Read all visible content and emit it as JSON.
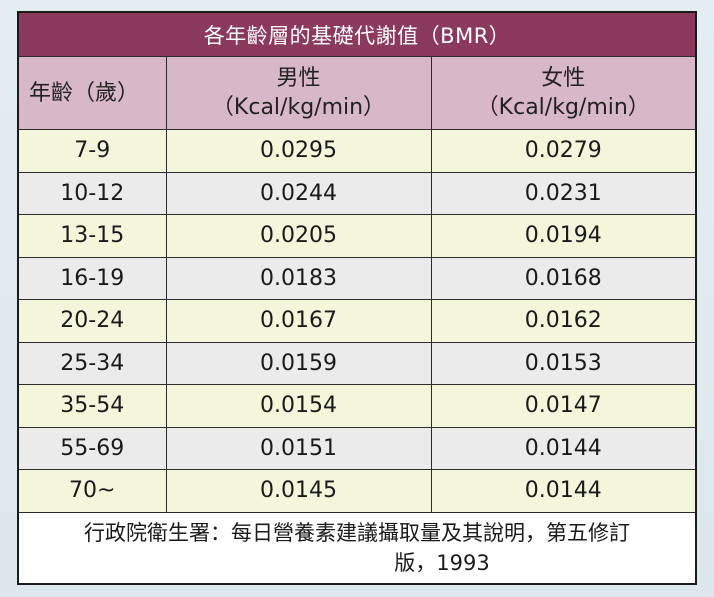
{
  "table": {
    "title": "各年齡層的基礎代謝值（BMR）",
    "headers": {
      "age": "年齡（歲）",
      "male_line1": "男性",
      "male_line2": "（Kcal/kg/min）",
      "female_line1": "女性",
      "female_line2": "（Kcal/kg/min）"
    },
    "rows": [
      {
        "age": "7-9",
        "male": "0.0295",
        "female": "0.0279"
      },
      {
        "age": "10-12",
        "male": "0.0244",
        "female": "0.0231"
      },
      {
        "age": "13-15",
        "male": "0.0205",
        "female": "0.0194"
      },
      {
        "age": "16-19",
        "male": "0.0183",
        "female": "0.0168"
      },
      {
        "age": "20-24",
        "male": "0.0167",
        "female": "0.0162"
      },
      {
        "age": "25-34",
        "male": "0.0159",
        "female": "0.0153"
      },
      {
        "age": "35-54",
        "male": "0.0154",
        "female": "0.0147"
      },
      {
        "age": "55-69",
        "male": "0.0151",
        "female": "0.0144"
      },
      {
        "age": "70~",
        "male": "0.0145",
        "female": "0.0144"
      }
    ],
    "source_line1": "行政院衛生署：每日營養素建議攝取量及其說明，第五修訂",
    "source_line2": "版，1993"
  },
  "colors": {
    "title_bg": "#8b3a5e",
    "header_bg": "#d8b8c8",
    "row_odd_bg": "#f4f6dc",
    "row_even_bg": "#ebebeb"
  }
}
